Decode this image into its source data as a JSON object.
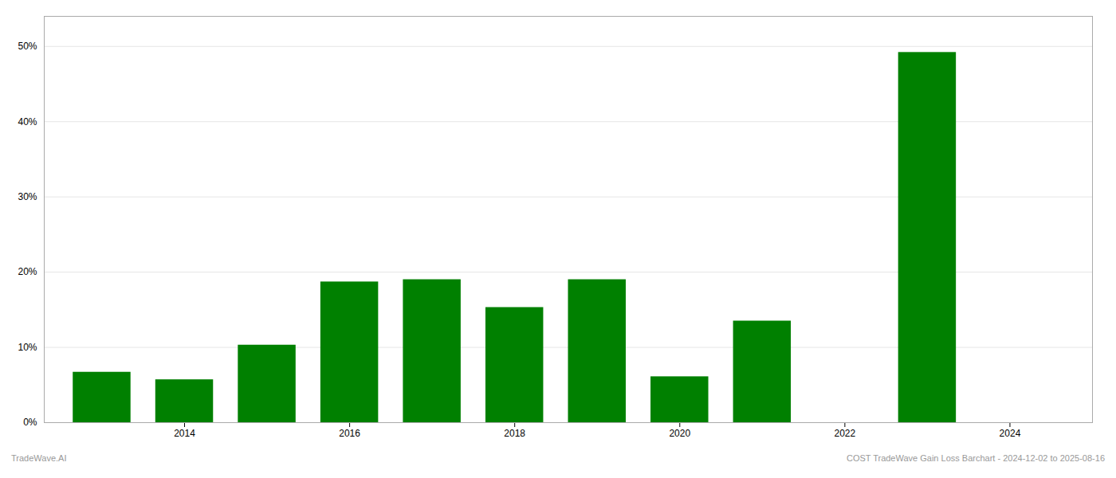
{
  "chart_data": {
    "type": "bar",
    "x": [
      2013,
      2014,
      2015,
      2016,
      2017,
      2018,
      2019,
      2020,
      2021,
      2023
    ],
    "values": [
      6.7,
      5.7,
      10.3,
      18.7,
      19.0,
      15.3,
      19.0,
      6.1,
      13.5,
      49.2
    ],
    "color": "#008000",
    "xlim": [
      2012.3,
      2025.0
    ],
    "xticks": [
      2014,
      2016,
      2018,
      2020,
      2022,
      2024
    ],
    "ylim": [
      0,
      54
    ],
    "yticks": [
      {
        "value": 0,
        "label": "0%"
      },
      {
        "value": 10,
        "label": "10%"
      },
      {
        "value": 20,
        "label": "20%"
      },
      {
        "value": 30,
        "label": "30%"
      },
      {
        "value": 40,
        "label": "40%"
      },
      {
        "value": 50,
        "label": "50%"
      }
    ],
    "grid": true,
    "annotations": [
      "TradeWave.AI",
      "COST TradeWave Gain Loss Barchart - 2024-12-02 to 2025-08-16"
    ]
  }
}
